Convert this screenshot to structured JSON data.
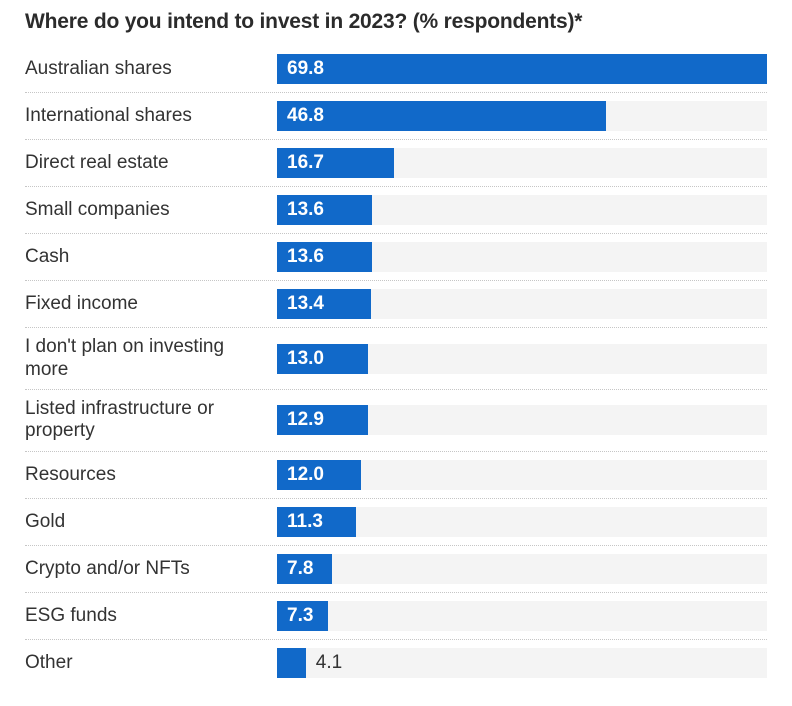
{
  "chart_data": {
    "type": "bar",
    "orientation": "horizontal",
    "title": "Where do you intend to invest in 2023? (% respondents)*",
    "categories": [
      "Australian shares",
      "International shares",
      "Direct real estate",
      "Small companies",
      "Cash",
      "Fixed income",
      "I don't plan on investing more",
      "Listed infrastructure or property",
      "Resources",
      "Gold",
      "Crypto and/or NFTs",
      "ESG funds",
      "Other"
    ],
    "values": [
      69.8,
      46.8,
      16.7,
      13.6,
      13.6,
      13.4,
      13.0,
      12.9,
      12.0,
      11.3,
      7.8,
      7.3,
      4.1
    ],
    "value_labels": [
      "69.8",
      "46.8",
      "16.7",
      "13.6",
      "13.6",
      "13.4",
      "13.0",
      "12.9",
      "12.0",
      "11.3",
      "7.8",
      "7.3",
      "4.1"
    ],
    "xlabel": "",
    "ylabel": "",
    "xlim": [
      0,
      69.8
    ],
    "grid": "off",
    "legend": "none",
    "value_label_placement": "inside-start; outside-right when bar too short",
    "colors": {
      "bar": "#1169c9",
      "track": "#f4f4f4",
      "category_text": "#333333",
      "value_inside_text": "#ffffff",
      "value_outside_text": "#333333",
      "separator": "#c6c6c6",
      "title": "#2b2b2b",
      "background": "#ffffff"
    }
  }
}
